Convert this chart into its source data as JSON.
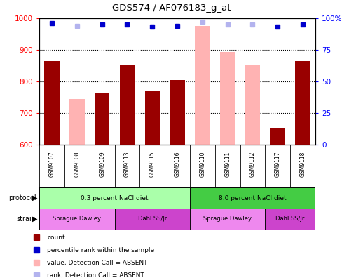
{
  "title": "GDS574 / AF076183_g_at",
  "samples": [
    "GSM9107",
    "GSM9108",
    "GSM9109",
    "GSM9113",
    "GSM9115",
    "GSM9116",
    "GSM9110",
    "GSM9111",
    "GSM9112",
    "GSM9117",
    "GSM9118"
  ],
  "bar_values": [
    865,
    null,
    765,
    852,
    770,
    803,
    null,
    null,
    null,
    652,
    865
  ],
  "bar_absent_values": [
    null,
    745,
    null,
    null,
    null,
    null,
    975,
    893,
    851,
    null,
    null
  ],
  "rank_values": [
    96,
    null,
    95,
    95,
    93,
    94,
    null,
    null,
    null,
    93,
    95
  ],
  "rank_absent_values": [
    null,
    94,
    null,
    null,
    null,
    null,
    97,
    95,
    95,
    null,
    null
  ],
  "bar_color": "#990000",
  "bar_absent_color": "#ffb3b3",
  "rank_color": "#0000cc",
  "rank_absent_color": "#b3b3ee",
  "ylim_left": [
    600,
    1000
  ],
  "ylim_right": [
    0,
    100
  ],
  "yticks_left": [
    600,
    700,
    800,
    900,
    1000
  ],
  "yticks_right": [
    0,
    25,
    50,
    75,
    100
  ],
  "protocol_groups": [
    {
      "label": "0.3 percent NaCl diet",
      "start": 0,
      "end": 5,
      "color": "#aaffaa"
    },
    {
      "label": "8.0 percent NaCl diet",
      "start": 6,
      "end": 10,
      "color": "#44cc44"
    }
  ],
  "strain_groups": [
    {
      "label": "Sprague Dawley",
      "start": 0,
      "end": 2,
      "color": "#ee88ee"
    },
    {
      "label": "Dahl SS/Jr",
      "start": 3,
      "end": 5,
      "color": "#cc44cc"
    },
    {
      "label": "Sprague Dawley",
      "start": 6,
      "end": 8,
      "color": "#ee88ee"
    },
    {
      "label": "Dahl SS/Jr",
      "start": 9,
      "end": 10,
      "color": "#cc44cc"
    }
  ],
  "legend_items": [
    {
      "label": "count",
      "color": "#990000"
    },
    {
      "label": "percentile rank within the sample",
      "color": "#0000cc"
    },
    {
      "label": "value, Detection Call = ABSENT",
      "color": "#ffb3b3"
    },
    {
      "label": "rank, Detection Call = ABSENT",
      "color": "#b3b3ee"
    }
  ],
  "bar_width": 0.6,
  "dotted_grid": [
    700,
    800,
    900
  ],
  "background_color": "#ffffff",
  "label_area_color": "#cccccc",
  "fig_width": 4.89,
  "fig_height": 3.96,
  "fig_dpi": 100
}
